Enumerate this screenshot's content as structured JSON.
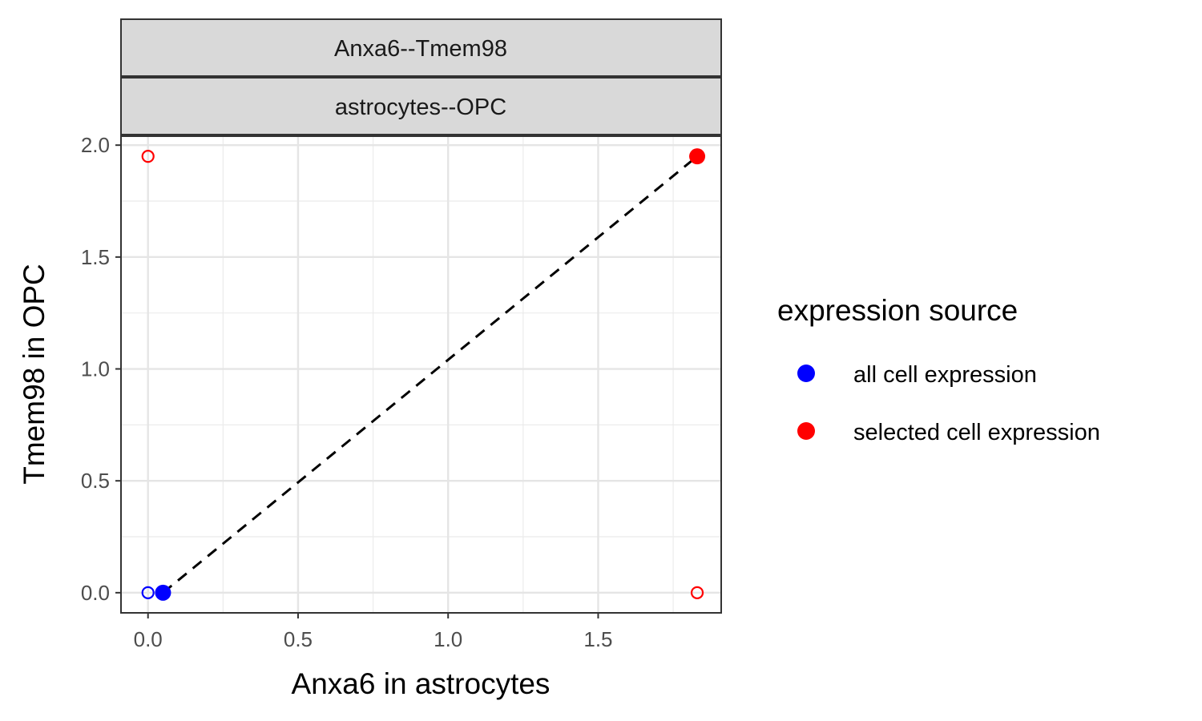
{
  "chart_data": {
    "type": "scatter",
    "facet_labels": [
      "Anxa6--Tmem98",
      "astrocytes--OPC"
    ],
    "xlabel": "Anxa6 in astrocytes",
    "ylabel": "Tmem98 in OPC",
    "xlim": [
      -0.09,
      1.91
    ],
    "ylim": [
      -0.09,
      2.04
    ],
    "xticks": [
      0.0,
      0.5,
      1.0,
      1.5
    ],
    "xtick_labels": [
      "0.0",
      "0.5",
      "1.0",
      "1.5"
    ],
    "yticks": [
      0.0,
      0.5,
      1.0,
      1.5,
      2.0
    ],
    "ytick_labels": [
      "0.0",
      "0.5",
      "1.0",
      "1.5",
      "2.0"
    ],
    "grid": true,
    "legend": {
      "title": "expression source",
      "position": "right",
      "entries": [
        {
          "label": "all cell expression",
          "color": "#0000FF"
        },
        {
          "label": "selected cell expression",
          "color": "#FF0000"
        }
      ]
    },
    "series": [
      {
        "name": "all cell expression",
        "color": "#0000FF",
        "points": [
          {
            "x": 0.0,
            "y": 0.0,
            "marker": "open"
          },
          {
            "x": 0.05,
            "y": 0.0,
            "marker": "filled"
          }
        ]
      },
      {
        "name": "selected cell expression",
        "color": "#FF0000",
        "points": [
          {
            "x": 0.0,
            "y": 1.95,
            "marker": "open"
          },
          {
            "x": 1.83,
            "y": 0.0,
            "marker": "open"
          },
          {
            "x": 1.83,
            "y": 1.95,
            "marker": "filled"
          }
        ]
      }
    ],
    "segment": {
      "x1": 0.05,
      "y1": 0.0,
      "x2": 1.83,
      "y2": 1.95,
      "style": "dashed",
      "color": "#000000"
    }
  }
}
